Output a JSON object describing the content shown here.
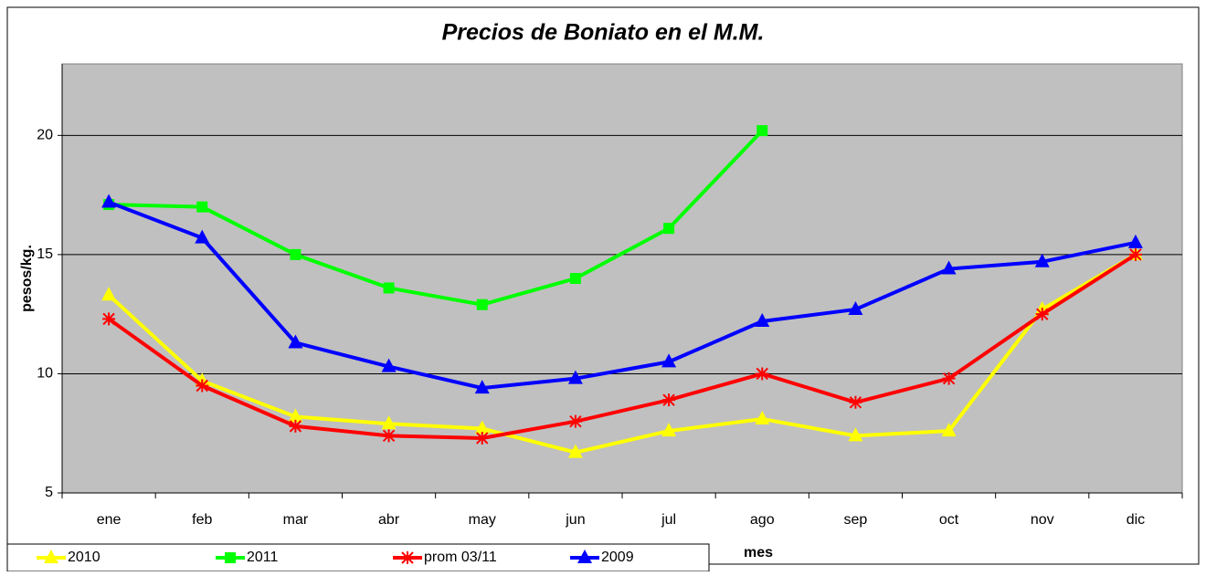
{
  "chart_data": {
    "type": "line",
    "title": "Precios de Boniato en el M.M.",
    "x_label": "mes",
    "y_label": "pesos/kg.",
    "categories": [
      "ene",
      "feb",
      "mar",
      "abr",
      "may",
      "jun",
      "jul",
      "ago",
      "sep",
      "oct",
      "nov",
      "dic"
    ],
    "series": [
      {
        "name": "2010",
        "color": "#ffff00",
        "marker": "triangle",
        "values": [
          13.3,
          9.7,
          8.2,
          7.9,
          7.7,
          6.7,
          7.6,
          8.1,
          7.4,
          7.6,
          12.7,
          15.0
        ]
      },
      {
        "name": "2011",
        "color": "#00ff00",
        "marker": "square",
        "values": [
          17.1,
          17.0,
          15.0,
          13.6,
          12.9,
          14.0,
          16.1,
          20.2,
          null,
          null,
          null,
          null
        ]
      },
      {
        "name": "prom 03/11",
        "color": "#ff0000",
        "marker": "asterisk",
        "values": [
          12.3,
          9.5,
          7.8,
          7.4,
          7.3,
          8.0,
          8.9,
          10.0,
          8.8,
          9.8,
          12.5,
          15.0
        ]
      },
      {
        "name": "2009",
        "color": "#0000ff",
        "marker": "triangle",
        "values": [
          17.2,
          15.7,
          11.3,
          10.3,
          9.4,
          9.8,
          10.5,
          12.2,
          12.7,
          14.4,
          14.7,
          15.5
        ]
      }
    ],
    "ylim": [
      5,
      23
    ],
    "yticks": [
      5,
      10,
      15,
      20
    ],
    "grid": true,
    "legend": "bottom"
  }
}
